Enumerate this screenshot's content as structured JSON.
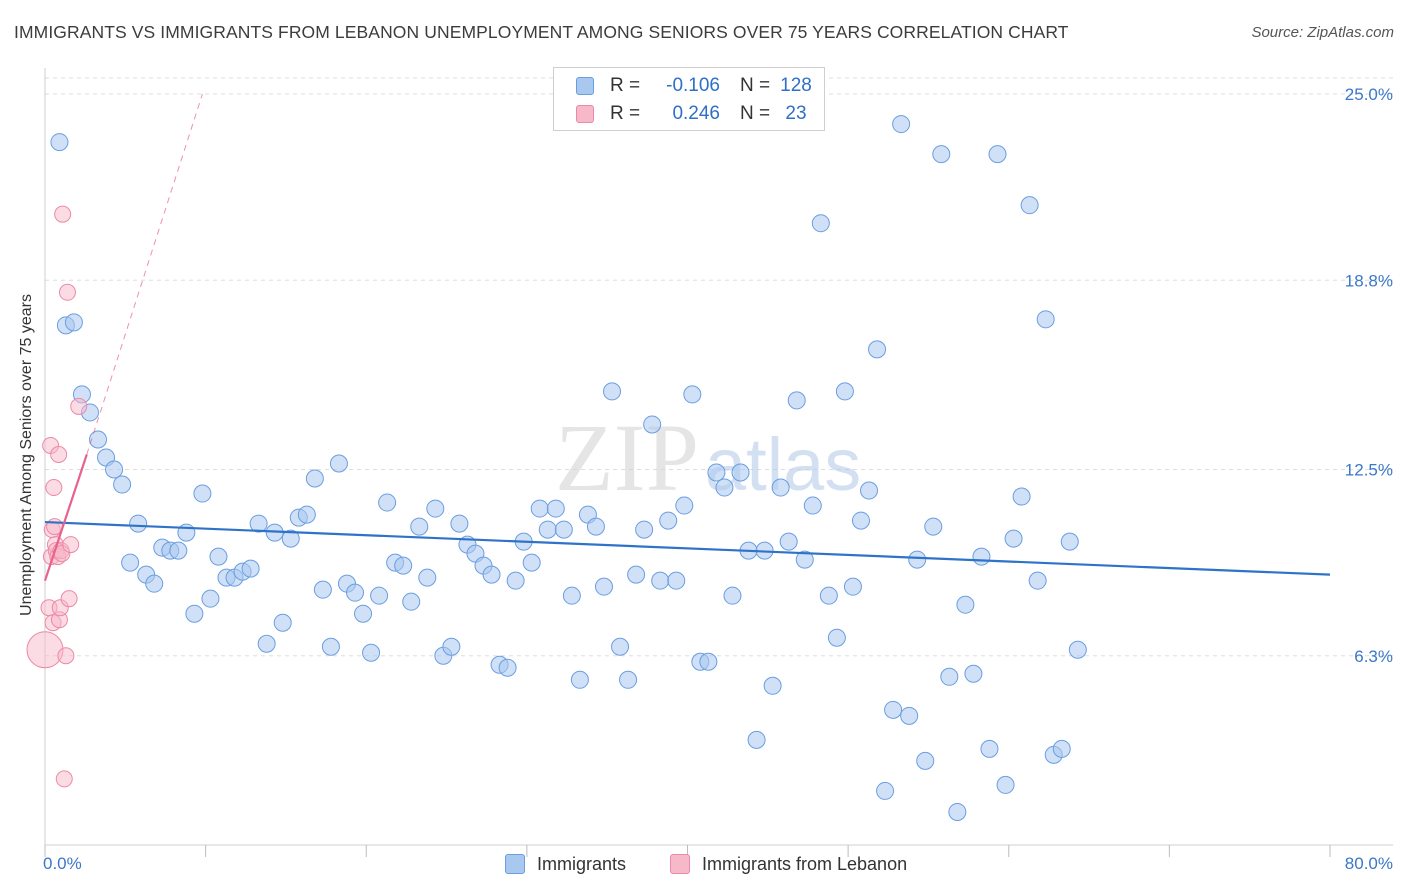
{
  "title": "IMMIGRANTS VS IMMIGRANTS FROM LEBANON UNEMPLOYMENT AMONG SENIORS OVER 75 YEARS CORRELATION CHART",
  "source": "Source: ZipAtlas.com",
  "colors": {
    "blue_fill": "#a9c8f0",
    "blue_stroke": "#6a9ee0",
    "blue_line": "#2f73c9",
    "pink_fill": "#f7b8c9",
    "pink_stroke": "#ec8aa6",
    "pink_line": "#e8628b",
    "tick_label": "#3a78c8"
  },
  "legend": {
    "rows": [
      {
        "r_label": "R =",
        "r_value": "-0.106",
        "n_label": "N =",
        "n_value": "128"
      },
      {
        "r_label": "R =",
        "r_value": "0.246",
        "n_label": "N =",
        "n_value": "23"
      }
    ]
  },
  "bottom_legend": [
    {
      "label": "Immigrants"
    },
    {
      "label": "Immigrants from Lebanon"
    }
  ],
  "chart_data": {
    "type": "scatter",
    "title": "IMMIGRANTS VS IMMIGRANTS FROM LEBANON UNEMPLOYMENT AMONG SENIORS OVER 75 YEARS CORRELATION CHART",
    "xlabel": "",
    "ylabel": "Unemployment Among Seniors over 75 years",
    "xlim": [
      0,
      80
    ],
    "ylim": [
      0,
      25.8
    ],
    "x_tick_labels": [
      "0.0%",
      "80.0%"
    ],
    "y_ticks": [
      6.3,
      12.5,
      18.8,
      25.0
    ],
    "y_tick_labels": [
      "6.3%",
      "12.5%",
      "18.8%",
      "25.0%"
    ],
    "grid": "horizontal dashed",
    "legend_placement": "top-center",
    "series": [
      {
        "name": "Immigrants",
        "r": -0.106,
        "n": 128,
        "trend": {
          "x": [
            0,
            80
          ],
          "y": [
            10.75,
            9.0
          ]
        },
        "points": [
          [
            0.9,
            23.4
          ],
          [
            1.3,
            17.3
          ],
          [
            1.8,
            17.4
          ],
          [
            2.3,
            15.0
          ],
          [
            2.8,
            14.4
          ],
          [
            3.3,
            13.5
          ],
          [
            3.8,
            12.9
          ],
          [
            4.3,
            12.5
          ],
          [
            4.8,
            12.0
          ],
          [
            5.3,
            9.4
          ],
          [
            5.8,
            10.7
          ],
          [
            6.3,
            9.0
          ],
          [
            6.8,
            8.7
          ],
          [
            7.3,
            9.9
          ],
          [
            7.8,
            9.8
          ],
          [
            8.3,
            9.8
          ],
          [
            8.8,
            10.4
          ],
          [
            9.3,
            7.7
          ],
          [
            9.8,
            11.7
          ],
          [
            10.3,
            8.2
          ],
          [
            10.8,
            9.6
          ],
          [
            11.3,
            8.9
          ],
          [
            11.8,
            8.9
          ],
          [
            12.3,
            9.1
          ],
          [
            12.8,
            9.2
          ],
          [
            13.3,
            10.7
          ],
          [
            13.8,
            6.7
          ],
          [
            14.3,
            10.4
          ],
          [
            14.8,
            7.4
          ],
          [
            15.3,
            10.2
          ],
          [
            15.8,
            10.9
          ],
          [
            16.3,
            11.0
          ],
          [
            16.8,
            12.2
          ],
          [
            17.3,
            8.5
          ],
          [
            17.8,
            6.6
          ],
          [
            18.3,
            12.7
          ],
          [
            18.8,
            8.7
          ],
          [
            19.3,
            8.4
          ],
          [
            19.8,
            7.7
          ],
          [
            20.3,
            6.4
          ],
          [
            20.8,
            8.3
          ],
          [
            21.3,
            11.4
          ],
          [
            21.8,
            9.4
          ],
          [
            22.3,
            9.3
          ],
          [
            22.8,
            8.1
          ],
          [
            23.3,
            10.6
          ],
          [
            23.8,
            8.9
          ],
          [
            24.3,
            11.2
          ],
          [
            24.8,
            6.3
          ],
          [
            25.3,
            6.6
          ],
          [
            25.8,
            10.7
          ],
          [
            26.3,
            10.0
          ],
          [
            26.8,
            9.7
          ],
          [
            27.3,
            9.3
          ],
          [
            27.8,
            9.0
          ],
          [
            28.3,
            6.0
          ],
          [
            28.8,
            5.9
          ],
          [
            29.3,
            8.8
          ],
          [
            29.8,
            10.1
          ],
          [
            30.3,
            9.4
          ],
          [
            30.8,
            11.2
          ],
          [
            31.3,
            10.5
          ],
          [
            31.8,
            11.2
          ],
          [
            32.3,
            10.5
          ],
          [
            32.8,
            8.3
          ],
          [
            33.3,
            5.5
          ],
          [
            33.8,
            11.0
          ],
          [
            34.3,
            10.6
          ],
          [
            34.8,
            8.6
          ],
          [
            35.3,
            15.1
          ],
          [
            35.8,
            6.6
          ],
          [
            36.3,
            5.5
          ],
          [
            36.8,
            9.0
          ],
          [
            37.3,
            10.5
          ],
          [
            37.8,
            14.0
          ],
          [
            38.3,
            8.8
          ],
          [
            38.8,
            10.8
          ],
          [
            39.3,
            8.8
          ],
          [
            39.8,
            11.3
          ],
          [
            40.3,
            15.0
          ],
          [
            40.8,
            6.1
          ],
          [
            41.3,
            6.1
          ],
          [
            41.8,
            12.4
          ],
          [
            42.3,
            11.9
          ],
          [
            42.8,
            8.3
          ],
          [
            43.3,
            12.4
          ],
          [
            43.8,
            9.8
          ],
          [
            44.3,
            3.5
          ],
          [
            44.8,
            9.8
          ],
          [
            45.3,
            5.3
          ],
          [
            45.8,
            11.9
          ],
          [
            46.3,
            10.1
          ],
          [
            46.8,
            14.8
          ],
          [
            47.3,
            9.5
          ],
          [
            47.8,
            11.3
          ],
          [
            48.3,
            20.7
          ],
          [
            48.8,
            8.3
          ],
          [
            49.3,
            6.9
          ],
          [
            49.8,
            15.1
          ],
          [
            50.3,
            8.6
          ],
          [
            50.8,
            10.8
          ],
          [
            51.3,
            11.8
          ],
          [
            51.8,
            16.5
          ],
          [
            52.3,
            1.8
          ],
          [
            52.8,
            4.5
          ],
          [
            53.3,
            24.0
          ],
          [
            53.8,
            4.3
          ],
          [
            54.3,
            9.5
          ],
          [
            54.8,
            2.8
          ],
          [
            55.3,
            10.6
          ],
          [
            55.8,
            23.0
          ],
          [
            56.3,
            5.6
          ],
          [
            56.8,
            1.1
          ],
          [
            57.3,
            8.0
          ],
          [
            57.8,
            5.7
          ],
          [
            58.3,
            9.6
          ],
          [
            58.8,
            3.2
          ],
          [
            59.3,
            23.0
          ],
          [
            59.8,
            2.0
          ],
          [
            60.3,
            10.2
          ],
          [
            60.8,
            11.6
          ],
          [
            61.3,
            21.3
          ],
          [
            61.8,
            8.8
          ],
          [
            62.3,
            17.5
          ],
          [
            62.8,
            3.0
          ],
          [
            63.3,
            3.2
          ],
          [
            63.8,
            10.1
          ],
          [
            64.3,
            6.5
          ]
        ]
      },
      {
        "name": "Immigrants from Lebanon",
        "r": 0.246,
        "n": 23,
        "trend": {
          "x": [
            0,
            2.6
          ],
          "y": [
            8.8,
            13.0
          ]
        },
        "trend_extension": {
          "x": [
            2.6,
            9.8
          ],
          "y": [
            13.0,
            25.0
          ]
        },
        "points": [
          [
            0.0,
            6.5
          ],
          [
            0.25,
            7.9
          ],
          [
            0.35,
            13.3
          ],
          [
            0.4,
            9.6
          ],
          [
            0.45,
            10.5
          ],
          [
            0.5,
            7.4
          ],
          [
            0.55,
            11.9
          ],
          [
            0.6,
            10.6
          ],
          [
            0.65,
            10.0
          ],
          [
            0.7,
            9.8
          ],
          [
            0.8,
            9.6
          ],
          [
            0.85,
            13.0
          ],
          [
            0.9,
            7.5
          ],
          [
            0.95,
            7.9
          ],
          [
            1.0,
            9.8
          ],
          [
            1.05,
            9.7
          ],
          [
            1.1,
            21.0
          ],
          [
            1.2,
            2.2
          ],
          [
            1.3,
            6.3
          ],
          [
            1.4,
            18.4
          ],
          [
            1.5,
            8.2
          ],
          [
            1.6,
            10.0
          ],
          [
            2.1,
            14.6
          ]
        ]
      }
    ]
  }
}
